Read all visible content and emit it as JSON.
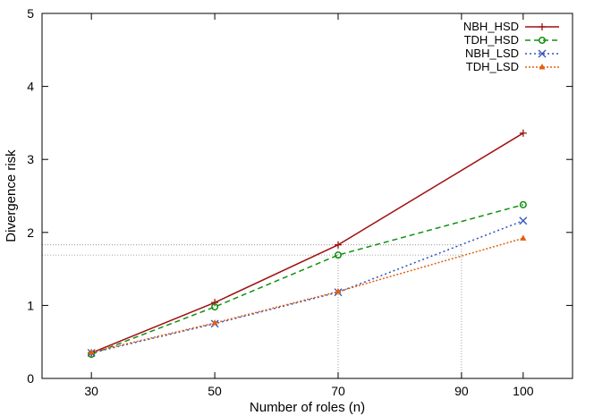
{
  "chart_data": {
    "type": "line",
    "title": "",
    "xlabel": "Number of roles (n)",
    "ylabel": "Divergence risk",
    "xlim": [
      22,
      108
    ],
    "ylim": [
      0,
      5
    ],
    "x_ticks": [
      30,
      50,
      70,
      90,
      100
    ],
    "x_tick_labels": [
      "30",
      "50",
      "70",
      "90",
      "100"
    ],
    "y_ticks": [
      0,
      1,
      2,
      3,
      4,
      5
    ],
    "y_tick_labels": [
      "0",
      "1",
      "2",
      "3",
      "4",
      "5"
    ],
    "grid": false,
    "legend_position": "top-right",
    "series": [
      {
        "name": "NBH_HSD",
        "color": "#a01010",
        "dash": "",
        "marker": "plus",
        "x": [
          30,
          50,
          70,
          100
        ],
        "values": [
          0.35,
          1.04,
          1.83,
          3.36
        ]
      },
      {
        "name": "TDH_HSD",
        "color": "#109010",
        "dash": "6,4",
        "marker": "circle",
        "x": [
          30,
          50,
          70,
          100
        ],
        "values": [
          0.33,
          0.98,
          1.69,
          2.38
        ]
      },
      {
        "name": "NBH_LSD",
        "color": "#3050c0",
        "dash": "2,3",
        "marker": "cross",
        "x": [
          30,
          50,
          70,
          100
        ],
        "values": [
          0.35,
          0.75,
          1.18,
          2.16
        ]
      },
      {
        "name": "TDH_LSD",
        "color": "#e06010",
        "dash": "2,2",
        "marker": "triangle",
        "x": [
          30,
          50,
          70,
          100
        ],
        "values": [
          0.36,
          0.76,
          1.19,
          1.92
        ]
      }
    ],
    "reference_lines": [
      {
        "type": "horizontal",
        "y": 1.83,
        "x_from": 22,
        "x_to": 90
      },
      {
        "type": "horizontal",
        "y": 1.69,
        "x_from": 22,
        "x_to": 90
      },
      {
        "type": "vertical",
        "x": 70,
        "y_from": 0,
        "y_to": 1.83
      },
      {
        "type": "vertical",
        "x": 90,
        "y_from": 0,
        "y_to": 1.83
      }
    ]
  }
}
